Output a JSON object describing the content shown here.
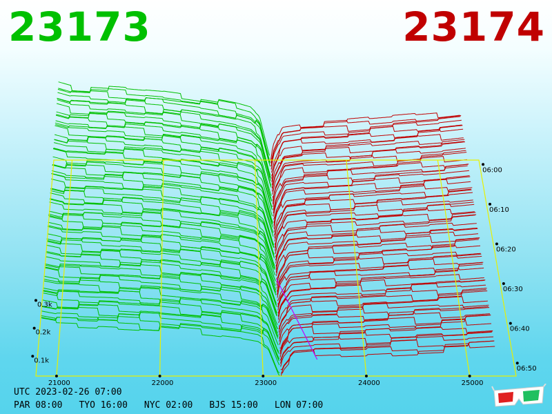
{
  "header": {
    "bid": "23173",
    "ask": "23174"
  },
  "colors": {
    "bid": "#00c000",
    "ask": "#c00000",
    "grid": "#e8f000",
    "floor": "#000000",
    "spread": "#c000ff"
  },
  "chart_data": {
    "type": "3d-depth-surface",
    "x_axis": {
      "ticks": [
        21000,
        22000,
        23000,
        24000,
        25000
      ],
      "range": [
        20800,
        25450
      ]
    },
    "z_axis": {
      "ticks": [
        0.1,
        0.2,
        0.3
      ],
      "tick_labels": [
        "0.1k",
        "0.2k",
        "0.3k"
      ],
      "unit": "k"
    },
    "time_axis": {
      "ticks": [
        "06:00",
        "06:10",
        "06:20",
        "06:30",
        "06:40",
        "06:50"
      ]
    },
    "mid_price": 23173.5,
    "series": [
      {
        "side": "bid",
        "profile_x": [
          20850,
          21000,
          21500,
          22000,
          22500,
          22800,
          22950,
          23050,
          23150,
          23173
        ],
        "profile_depth": [
          0.6,
          0.57,
          0.55,
          0.52,
          0.47,
          0.43,
          0.4,
          0.33,
          0.05,
          0.0
        ]
      },
      {
        "side": "ask",
        "profile_x": [
          23174,
          23200,
          23300,
          23500,
          24000,
          24500,
          25000,
          25250
        ],
        "profile_depth": [
          0.0,
          0.1,
          0.26,
          0.28,
          0.3,
          0.33,
          0.36,
          0.38
        ]
      }
    ]
  },
  "footer": {
    "utc": "UTC 2023-02-26 07:00",
    "zones": [
      "PAR 08:00",
      "TYO 16:00",
      "NYC 02:00",
      "BJS 15:00",
      "LON 07:00"
    ]
  },
  "icons": {
    "glasses": "3d-glasses-icon"
  }
}
